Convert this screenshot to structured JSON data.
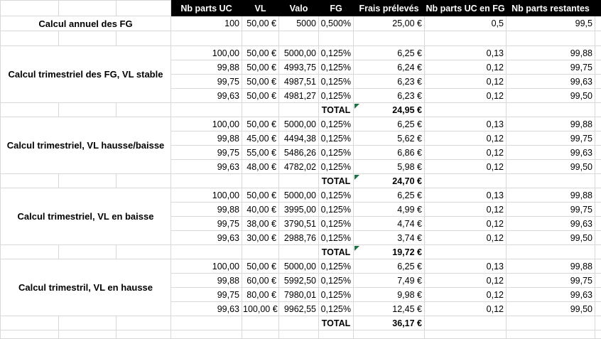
{
  "sheet": {
    "header": {
      "columns": [
        "Nb parts UC",
        "VL",
        "Valo",
        "FG",
        "Frais prélevés",
        "Nb parts UC en FG",
        "Nb parts restantes"
      ]
    },
    "total_label": "TOTAL",
    "sections": [
      {
        "label": "Calcul annuel des FG",
        "rows": [
          [
            "100",
            "50,00 €",
            "5000",
            "0,500%",
            "25,00 €",
            "0,5",
            "99,5"
          ]
        ],
        "total": null,
        "flag": false
      },
      {
        "label": "Calcul trimestriel des FG, VL stable",
        "rows": [
          [
            "100,00",
            "50,00 €",
            "5000,00",
            "0,125%",
            "6,25 €",
            "0,13",
            "99,88"
          ],
          [
            "99,88",
            "50,00 €",
            "4993,75",
            "0,125%",
            "6,24 €",
            "0,12",
            "99,75"
          ],
          [
            "99,75",
            "50,00 €",
            "4987,51",
            "0,125%",
            "6,23 €",
            "0,12",
            "99,63"
          ],
          [
            "99,63",
            "50,00 €",
            "4981,27",
            "0,125%",
            "6,23 €",
            "0,12",
            "99,50"
          ]
        ],
        "total": "24,95 €",
        "flag": true
      },
      {
        "label": "Calcul trimestriel, VL hausse/baisse",
        "rows": [
          [
            "100,00",
            "50,00 €",
            "5000,00",
            "0,125%",
            "6,25 €",
            "0,13",
            "99,88"
          ],
          [
            "99,88",
            "45,00 €",
            "4494,38",
            "0,125%",
            "5,62 €",
            "0,12",
            "99,75"
          ],
          [
            "99,75",
            "55,00 €",
            "5486,26",
            "0,125%",
            "6,86 €",
            "0,12",
            "99,63"
          ],
          [
            "99,63",
            "48,00 €",
            "4782,02",
            "0,125%",
            "5,98 €",
            "0,12",
            "99,50"
          ]
        ],
        "total": "24,70 €",
        "flag": true
      },
      {
        "label": "Calcul trimestriel, VL en baisse",
        "rows": [
          [
            "100,00",
            "50,00 €",
            "5000,00",
            "0,125%",
            "6,25 €",
            "0,13",
            "99,88"
          ],
          [
            "99,88",
            "40,00 €",
            "3995,00",
            "0,125%",
            "4,99 €",
            "0,12",
            "99,75"
          ],
          [
            "99,75",
            "38,00 €",
            "3790,51",
            "0,125%",
            "4,74 €",
            "0,12",
            "99,63"
          ],
          [
            "99,63",
            "30,00 €",
            "2988,76",
            "0,125%",
            "3,74 €",
            "0,12",
            "99,50"
          ]
        ],
        "total": "19,72 €",
        "flag": true
      },
      {
        "label": "Calcul trimestril, VL en hausse",
        "rows": [
          [
            "100,00",
            "50,00 €",
            "5000,00",
            "0,125%",
            "6,25 €",
            "0,13",
            "99,88"
          ],
          [
            "99,88",
            "60,00 €",
            "5992,50",
            "0,125%",
            "7,49 €",
            "0,12",
            "99,75"
          ],
          [
            "99,75",
            "80,00 €",
            "7980,01",
            "0,125%",
            "9,98 €",
            "0,12",
            "99,63"
          ],
          [
            "99,63",
            "100,00 €",
            "9962,55",
            "0,125%",
            "12,45 €",
            "0,12",
            "99,50"
          ]
        ],
        "total": "36,17 €",
        "flag": false
      }
    ],
    "colors": {
      "header_bg": "#000000",
      "header_text": "#ffffff",
      "gridline": "#d8d8d8",
      "warning_triangle_green": "#1e7145"
    }
  }
}
